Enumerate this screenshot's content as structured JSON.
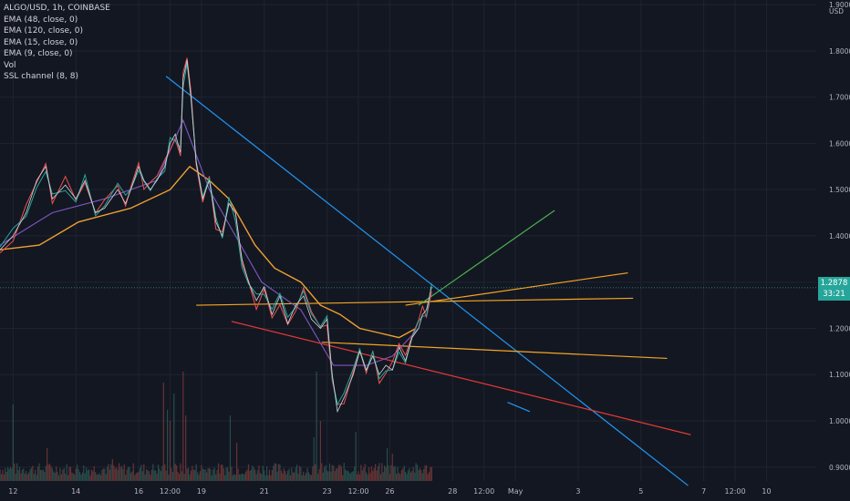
{
  "header": {
    "symbol_line": "ALGO/USD, 1h, COINBASE",
    "indicators": [
      "EMA (48, close, 0)",
      "EMA (120, close, 0)",
      "EMA (15, close, 0)",
      "EMA (9, close, 0)",
      "Vol",
      "SSL channel (8, 8)"
    ]
  },
  "price_axis": {
    "currency": "USD",
    "last_price": "1.2878",
    "countdown": "33:21"
  },
  "colors": {
    "background": "#131722",
    "grid": "#1f2430",
    "text": "#b2b5be",
    "trend_blue": "#2196f3",
    "trend_orange": "#f5a623",
    "trend_red": "#e53935",
    "trend_green": "#4caf50",
    "ema_orange": "#f0a030",
    "ema_purple": "#7e57c2",
    "ssl_teal": "#26a69a",
    "ssl_red": "#ef5350",
    "volume": "#5d4a44"
  },
  "chart_data": {
    "type": "line",
    "title": "ALGO/USD, 1h, COINBASE",
    "xlabel": "",
    "ylabel": "USD",
    "ylim": [
      0.87,
      1.91
    ],
    "y_ticks": [
      "1.9000",
      "1.8000",
      "1.7000",
      "1.6000",
      "1.5000",
      "1.4000",
      "1.3000",
      "1.2000",
      "1.1000",
      "1.0000",
      "0.9000"
    ],
    "y_tick_values": [
      1.9,
      1.8,
      1.7,
      1.6,
      1.5,
      1.4,
      1.3,
      1.2,
      1.1,
      1.0,
      0.9
    ],
    "x_ticks": [
      "12",
      "14",
      "16",
      "12:00",
      "19",
      "21",
      "23",
      "12:00",
      "26",
      "28",
      "12:00",
      "May",
      "3",
      "5",
      "7",
      "12:00",
      "10"
    ],
    "x_tick_index": [
      10,
      58,
      106,
      130,
      154,
      202,
      250,
      274,
      298,
      346,
      370,
      394,
      442,
      490,
      538,
      562,
      586
    ],
    "x_range": [
      0,
      624
    ],
    "price_series": {
      "name": "ALGO/USD",
      "x": [
        0,
        10,
        20,
        28,
        35,
        40,
        50,
        58,
        65,
        73,
        80,
        90,
        96,
        100,
        106,
        110,
        115,
        120,
        126,
        130,
        134,
        138,
        140,
        143,
        146,
        150,
        155,
        160,
        165,
        170,
        175,
        180,
        185,
        190,
        196,
        202,
        208,
        214,
        220,
        226,
        232,
        238,
        245,
        250,
        254,
        258,
        263,
        270,
        275,
        280,
        285,
        290,
        295,
        300,
        305,
        310,
        315,
        320,
        323,
        326,
        330
      ],
      "values": [
        1.37,
        1.4,
        1.45,
        1.52,
        1.55,
        1.48,
        1.51,
        1.48,
        1.52,
        1.45,
        1.46,
        1.5,
        1.47,
        1.5,
        1.55,
        1.52,
        1.5,
        1.52,
        1.55,
        1.6,
        1.62,
        1.58,
        1.74,
        1.78,
        1.7,
        1.56,
        1.48,
        1.52,
        1.43,
        1.4,
        1.47,
        1.45,
        1.35,
        1.3,
        1.26,
        1.29,
        1.23,
        1.27,
        1.21,
        1.25,
        1.27,
        1.22,
        1.2,
        1.22,
        1.1,
        1.02,
        1.05,
        1.1,
        1.15,
        1.11,
        1.14,
        1.1,
        1.12,
        1.11,
        1.16,
        1.13,
        1.18,
        1.2,
        1.23,
        1.24,
        1.29
      ]
    },
    "ema_long": {
      "name": "EMA (120, close, 0)",
      "x": [
        0,
        30,
        60,
        100,
        130,
        145,
        160,
        175,
        185,
        195,
        210,
        230,
        245,
        260,
        275,
        290,
        305,
        318
      ],
      "values": [
        1.37,
        1.38,
        1.43,
        1.46,
        1.5,
        1.55,
        1.52,
        1.48,
        1.43,
        1.38,
        1.33,
        1.3,
        1.25,
        1.23,
        1.2,
        1.19,
        1.18,
        1.2
      ]
    },
    "ema_mid": {
      "name": "EMA (48, close, 0)",
      "x": [
        0,
        40,
        80,
        120,
        140,
        160,
        180,
        200,
        230,
        255,
        280,
        300,
        320
      ],
      "values": [
        1.38,
        1.45,
        1.48,
        1.52,
        1.65,
        1.5,
        1.4,
        1.3,
        1.24,
        1.12,
        1.12,
        1.14,
        1.2
      ]
    },
    "volume": {
      "name": "Vol",
      "note": "relative bar heights",
      "spikes_x": [
        10,
        36,
        86,
        125,
        128,
        130,
        133,
        140,
        142,
        176,
        181,
        240,
        242,
        245,
        272,
        296,
        300
      ],
      "spikes_v": [
        0.7,
        0.3,
        0.2,
        0.9,
        0.65,
        0.55,
        0.8,
        1.0,
        0.6,
        0.6,
        0.35,
        0.4,
        1.0,
        0.55,
        0.45,
        0.3,
        0.25
      ]
    },
    "drawings": [
      {
        "name": "blue-trendline",
        "color": "#2196f3",
        "from": [
          127,
          1.745
        ],
        "to": [
          526,
          0.86
        ]
      },
      {
        "name": "blue-trendline-b",
        "color": "#2196f3",
        "from": [
          388,
          1.04
        ],
        "to": [
          405,
          1.02
        ]
      },
      {
        "name": "red-trendline",
        "color": "#e53935",
        "from": [
          177,
          1.215
        ],
        "to": [
          528,
          0.97
        ]
      },
      {
        "name": "orange-flat",
        "color": "#f5a623",
        "from": [
          150,
          1.25
        ],
        "to": [
          484,
          1.265
        ]
      },
      {
        "name": "orange-rising",
        "color": "#f5a623",
        "from": [
          310,
          1.25
        ],
        "to": [
          480,
          1.32
        ]
      },
      {
        "name": "orange-falling",
        "color": "#f5a623",
        "from": [
          246,
          1.17
        ],
        "to": [
          510,
          1.135
        ]
      },
      {
        "name": "green-trendline",
        "color": "#4caf50",
        "from": [
          320,
          1.25
        ],
        "to": [
          424,
          1.455
        ]
      }
    ]
  }
}
